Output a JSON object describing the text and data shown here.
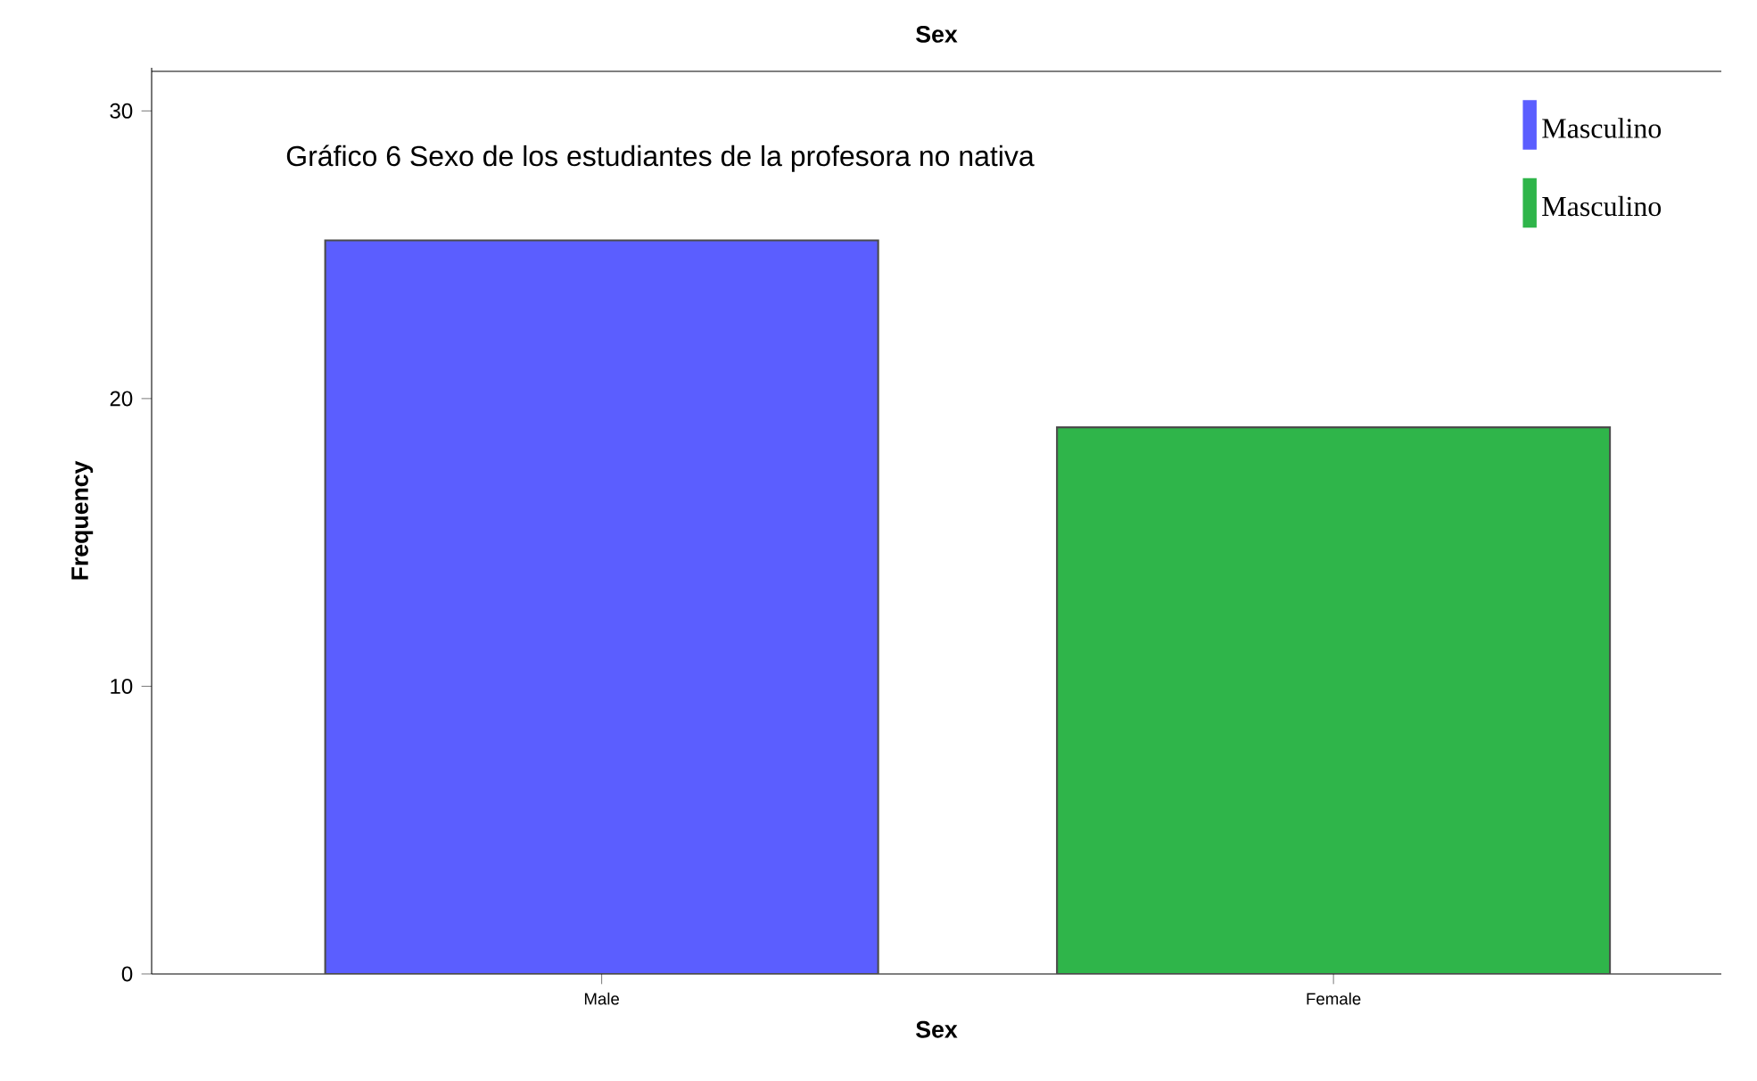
{
  "chart_data": {
    "type": "bar",
    "title": "Sex",
    "xlabel": "Sex",
    "ylabel": "Frequency",
    "categories": [
      "Male",
      "Female"
    ],
    "series": [
      {
        "name": "Masculino",
        "color": "#5b5eff",
        "values": [
          25.5,
          null
        ]
      },
      {
        "name": "Masculino",
        "color": "#2fb54a",
        "values": [
          null,
          19
        ]
      }
    ],
    "ylim": [
      0,
      31.5
    ],
    "yticks": [
      0,
      10,
      20,
      30
    ],
    "grid": false,
    "legend": "top right",
    "annotations": [
      "Gráfico 6 Sexo de los estudiantes de la profesora no nativa"
    ]
  }
}
